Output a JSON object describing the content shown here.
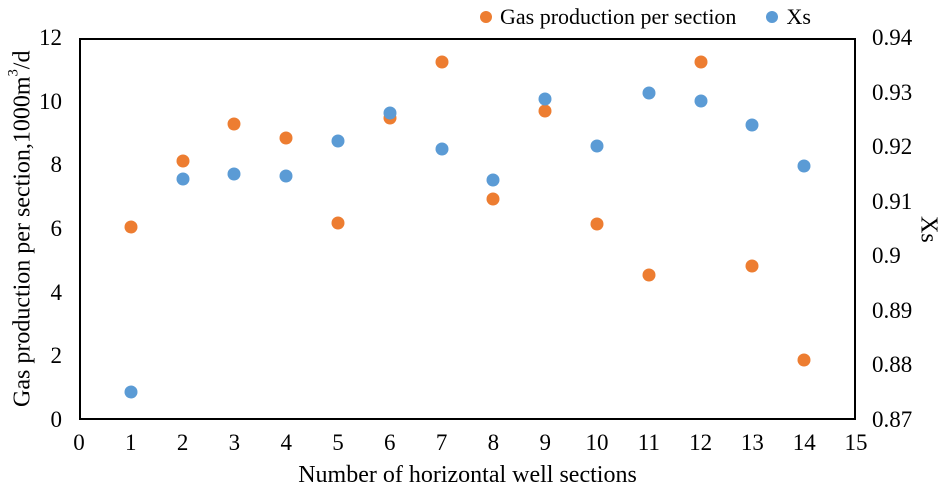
{
  "chart_data": {
    "type": "scatter",
    "x": [
      1,
      2,
      3,
      4,
      5,
      6,
      7,
      8,
      9,
      10,
      11,
      12,
      13,
      14
    ],
    "series": [
      {
        "name": "Gas production per section",
        "axis": "left",
        "color": "#ED7D31",
        "values": [
          6.05,
          8.15,
          9.3,
          8.85,
          6.2,
          9.5,
          11.25,
          6.95,
          9.7,
          6.15,
          4.55,
          11.25,
          4.85,
          1.9
        ]
      },
      {
        "name": "Xs",
        "axis": "right",
        "color": "#5B9BD5",
        "values": [
          0.8752,
          0.9141,
          0.915,
          0.9147,
          0.9212,
          0.9262,
          0.9196,
          0.914,
          0.9288,
          0.9203,
          0.93,
          0.9284,
          0.924,
          0.9166
        ]
      }
    ],
    "x_axis": {
      "label": "Number of horizontal well sections",
      "min": 0,
      "max": 15,
      "ticks": [
        "0",
        "1",
        "2",
        "3",
        "4",
        "5",
        "6",
        "7",
        "8",
        "9",
        "10",
        "11",
        "12",
        "13",
        "14",
        "15"
      ]
    },
    "y_left": {
      "label": "Gas production per section,1000m³/d",
      "label_parts": [
        "Gas production per section,1000m",
        "3",
        "/d"
      ],
      "min": 0,
      "max": 12,
      "ticks": [
        "0",
        "2",
        "4",
        "6",
        "8",
        "10",
        "12"
      ]
    },
    "y_right": {
      "label": "Xs",
      "min": 0.87,
      "max": 0.94,
      "ticks": [
        "0.87",
        "0.88",
        "0.89",
        "0.9",
        "0.91",
        "0.92",
        "0.93",
        "0.94"
      ]
    },
    "legend": {
      "entries": [
        {
          "label": "Gas production per section",
          "color": "#ED7D31"
        },
        {
          "label": "Xs",
          "color": "#5B9BD5"
        }
      ],
      "position": "top"
    },
    "grid": false,
    "frame_color": "#000000",
    "background": "#ffffff"
  }
}
